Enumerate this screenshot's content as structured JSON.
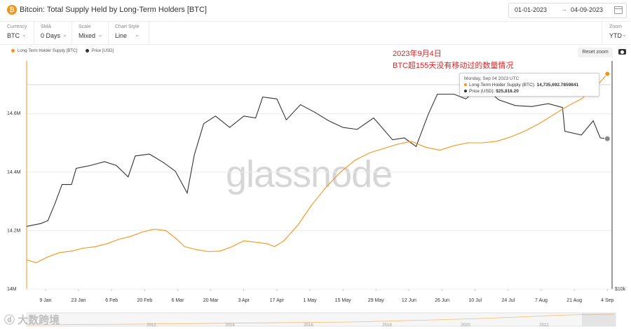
{
  "header": {
    "title": "Bitcoin: Total Supply Held by Long-Term Holders [BTC]",
    "date_from": "01-01-2023",
    "date_to": "04-09-2023",
    "arrow": "→"
  },
  "controls": [
    {
      "label": "Currency",
      "value": "BTC"
    },
    {
      "label": "SMA",
      "value": "0 Days"
    },
    {
      "label": "Scale",
      "value": "Mixed"
    },
    {
      "label": "Chart Style",
      "value": "Line"
    }
  ],
  "zoom": {
    "label": "Zoom",
    "value": "YTD"
  },
  "reset_zoom": "Reset zoom",
  "annotation": {
    "line1": "2023年9月4日",
    "line2": "BTC超155天没有移动过的数量情况"
  },
  "tooltip": {
    "date": "Monday, Sep 04 2023 UTC",
    "lth_label": "Long-Term Holder Supply (BTC):",
    "lth_value": "14,735,692.7859841",
    "price_label": "Price (USD):",
    "price_value": "$25,818.20"
  },
  "watermark": "glassnode",
  "logo_text": "大数跨境",
  "navigator_years": [
    "2012",
    "2014",
    "2016",
    "2018",
    "2020",
    "2022"
  ],
  "colors": {
    "lth": "#f7931a",
    "price": "#333333",
    "annotation": "#e02020"
  },
  "chart_data": {
    "type": "line",
    "title": "Bitcoin: Total Supply Held by Long-Term Holders [BTC]",
    "x_tick_labels": [
      "9 Jan",
      "23 Jan",
      "6 Feb",
      "20 Feb",
      "6 Mar",
      "20 Mar",
      "3 Apr",
      "17 Apr",
      "1 May",
      "15 May",
      "29 May",
      "12 Jun",
      "26 Jun",
      "10 Jul",
      "24 Jul",
      "7 Aug",
      "21 Aug",
      "4 Sep"
    ],
    "y_tick_labels": [
      "14M",
      "14.2M",
      "14.4M",
      "14.6M"
    ],
    "yright_tick_labels": [
      "$10k"
    ],
    "ylim": [
      14000000,
      14780000
    ],
    "legend_position": "top-left",
    "grid": true,
    "series": [
      {
        "name": "Long-Term Holder Supply [BTC]",
        "axis": "left",
        "points": [
          [
            "2023-01-01",
            14100000
          ],
          [
            "2023-01-05",
            14090000
          ],
          [
            "2023-01-10",
            14110000
          ],
          [
            "2023-01-15",
            14125000
          ],
          [
            "2023-01-20",
            14130000
          ],
          [
            "2023-01-25",
            14140000
          ],
          [
            "2023-01-30",
            14145000
          ],
          [
            "2023-02-04",
            14155000
          ],
          [
            "2023-02-09",
            14170000
          ],
          [
            "2023-02-14",
            14180000
          ],
          [
            "2023-02-19",
            14195000
          ],
          [
            "2023-02-24",
            14205000
          ],
          [
            "2023-03-01",
            14200000
          ],
          [
            "2023-03-05",
            14175000
          ],
          [
            "2023-03-09",
            14145000
          ],
          [
            "2023-03-14",
            14135000
          ],
          [
            "2023-03-19",
            14128000
          ],
          [
            "2023-03-24",
            14130000
          ],
          [
            "2023-03-29",
            14145000
          ],
          [
            "2023-04-03",
            14165000
          ],
          [
            "2023-04-08",
            14160000
          ],
          [
            "2023-04-13",
            14155000
          ],
          [
            "2023-04-16",
            14145000
          ],
          [
            "2023-04-20",
            14165000
          ],
          [
            "2023-04-26",
            14220000
          ],
          [
            "2023-05-02",
            14290000
          ],
          [
            "2023-05-08",
            14350000
          ],
          [
            "2023-05-14",
            14400000
          ],
          [
            "2023-05-20",
            14440000
          ],
          [
            "2023-05-26",
            14465000
          ],
          [
            "2023-06-01",
            14480000
          ],
          [
            "2023-06-07",
            14495000
          ],
          [
            "2023-06-13",
            14505000
          ],
          [
            "2023-06-19",
            14485000
          ],
          [
            "2023-06-25",
            14475000
          ],
          [
            "2023-07-01",
            14490000
          ],
          [
            "2023-07-07",
            14500000
          ],
          [
            "2023-07-13",
            14500000
          ],
          [
            "2023-07-19",
            14505000
          ],
          [
            "2023-07-25",
            14520000
          ],
          [
            "2023-07-31",
            14540000
          ],
          [
            "2023-08-06",
            14565000
          ],
          [
            "2023-08-12",
            14595000
          ],
          [
            "2023-08-18",
            14625000
          ],
          [
            "2023-08-24",
            14650000
          ],
          [
            "2023-08-30",
            14690000
          ],
          [
            "2023-09-04",
            14735692.7859841
          ]
        ]
      },
      {
        "name": "Price [USD]",
        "axis": "right",
        "points": [
          [
            "2023-01-01",
            16600
          ],
          [
            "2023-01-07",
            16900
          ],
          [
            "2023-01-10",
            17200
          ],
          [
            "2023-01-13",
            19000
          ],
          [
            "2023-01-16",
            21000
          ],
          [
            "2023-01-20",
            21000
          ],
          [
            "2023-01-22",
            22700
          ],
          [
            "2023-01-28",
            23000
          ],
          [
            "2023-02-03",
            23400
          ],
          [
            "2023-02-08",
            23000
          ],
          [
            "2023-02-13",
            21800
          ],
          [
            "2023-02-16",
            24000
          ],
          [
            "2023-02-22",
            24200
          ],
          [
            "2023-02-28",
            23300
          ],
          [
            "2023-03-05",
            22400
          ],
          [
            "2023-03-10",
            20100
          ],
          [
            "2023-03-13",
            24100
          ],
          [
            "2023-03-17",
            27400
          ],
          [
            "2023-03-22",
            28200
          ],
          [
            "2023-03-28",
            27000
          ],
          [
            "2023-04-03",
            28200
          ],
          [
            "2023-04-08",
            28000
          ],
          [
            "2023-04-11",
            30200
          ],
          [
            "2023-04-17",
            30000
          ],
          [
            "2023-04-21",
            27800
          ],
          [
            "2023-04-27",
            29400
          ],
          [
            "2023-05-03",
            28600
          ],
          [
            "2023-05-09",
            27700
          ],
          [
            "2023-05-15",
            27000
          ],
          [
            "2023-05-21",
            26800
          ],
          [
            "2023-05-28",
            28000
          ],
          [
            "2023-06-05",
            25700
          ],
          [
            "2023-06-10",
            25900
          ],
          [
            "2023-06-15",
            25000
          ],
          [
            "2023-06-20",
            28300
          ],
          [
            "2023-06-24",
            30500
          ],
          [
            "2023-07-01",
            30500
          ],
          [
            "2023-07-06",
            30000
          ],
          [
            "2023-07-13",
            31400
          ],
          [
            "2023-07-20",
            29900
          ],
          [
            "2023-07-27",
            29300
          ],
          [
            "2023-08-03",
            29200
          ],
          [
            "2023-08-10",
            29500
          ],
          [
            "2023-08-16",
            29100
          ],
          [
            "2023-08-17",
            26600
          ],
          [
            "2023-08-24",
            26200
          ],
          [
            "2023-08-29",
            27700
          ],
          [
            "2023-09-01",
            25900
          ],
          [
            "2023-09-04",
            25818.2
          ]
        ]
      }
    ]
  }
}
